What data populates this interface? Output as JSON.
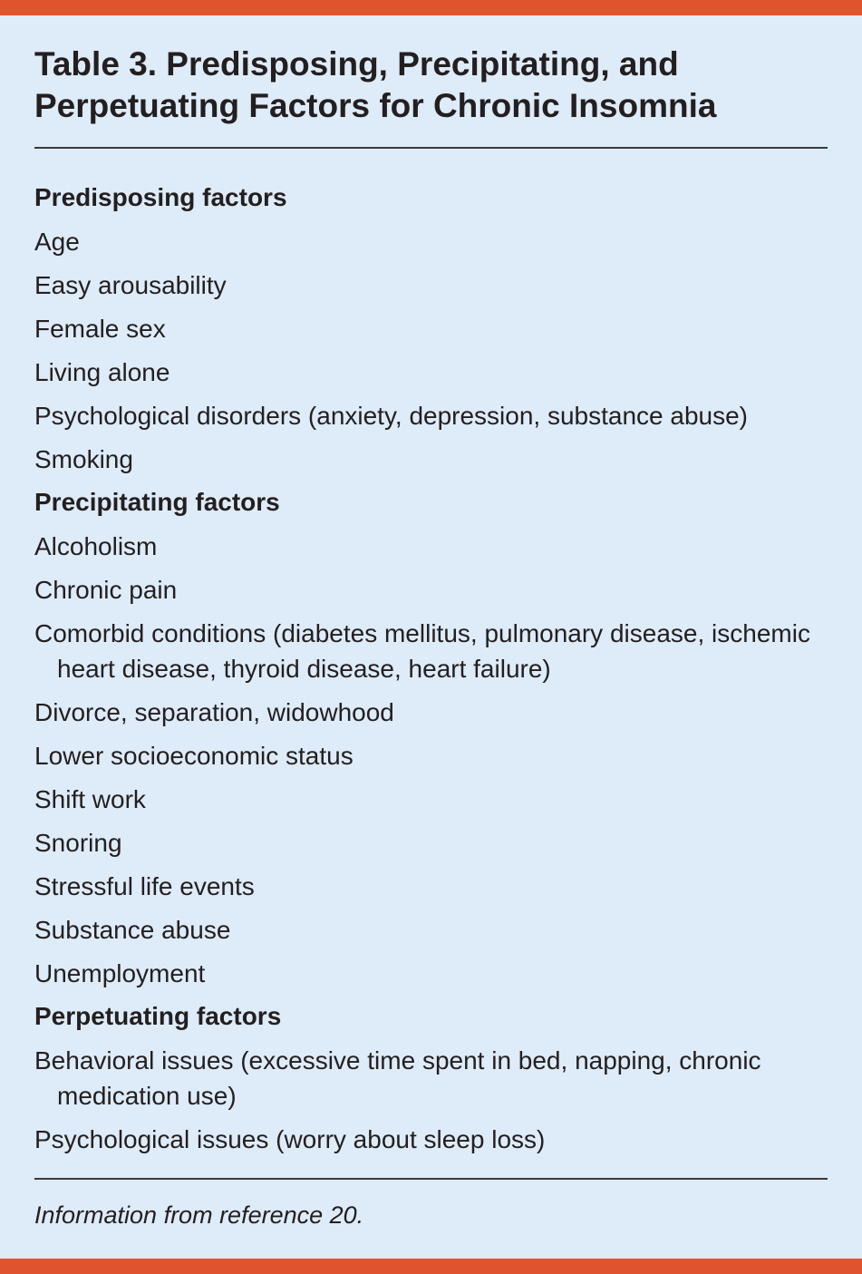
{
  "colors": {
    "accent_bar": "#e0532f",
    "background": "#deebf8"
  },
  "title": "Table 3. Predisposing, Precipitating, and Perpetuating Factors for Chronic Insomnia",
  "sections": [
    {
      "heading": "Predisposing factors",
      "items": [
        "Age",
        "Easy arousability",
        "Female sex",
        "Living alone",
        "Psychological disorders (anxiety, depression, substance abuse)",
        "Smoking"
      ]
    },
    {
      "heading": "Precipitating factors",
      "items": [
        "Alcoholism",
        "Chronic pain",
        "Comorbid conditions (diabetes mellitus, pulmonary disease, ischemic heart disease, thyroid disease, heart failure)",
        "Divorce, separation, widowhood",
        "Lower socioeconomic status",
        "Shift work",
        "Snoring",
        "Stressful life events",
        "Substance abuse",
        "Unemployment"
      ]
    },
    {
      "heading": "Perpetuating factors",
      "items": [
        "Behavioral issues (excessive time spent in bed, napping, chronic medication use)",
        "Psychological issues (worry about sleep loss)"
      ]
    }
  ],
  "footnote": "Information from reference 20."
}
